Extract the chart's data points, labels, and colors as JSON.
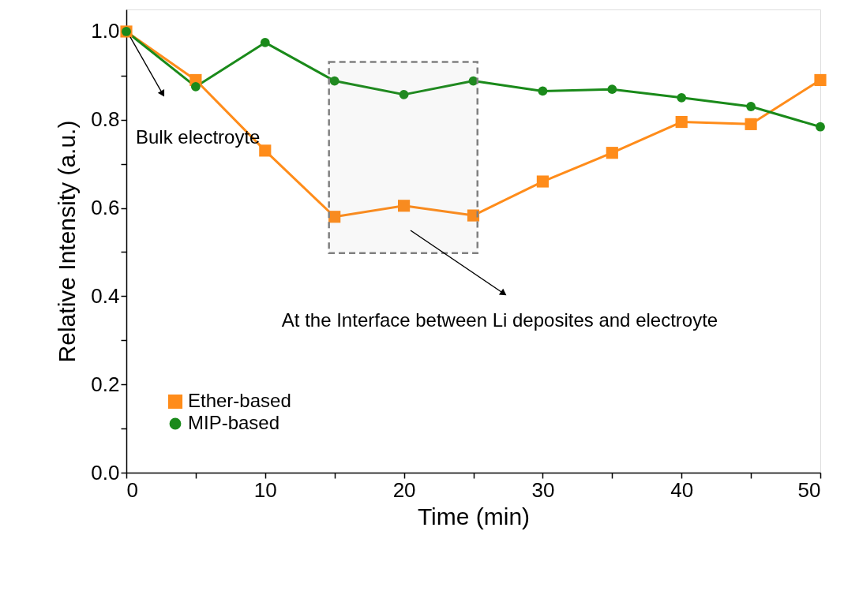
{
  "chart_data": {
    "type": "line",
    "xlabel": "Time (min)",
    "ylabel": "Relative Intensity (a.u.)",
    "x": [
      0,
      5,
      10,
      15,
      20,
      25,
      30,
      35,
      40,
      45,
      50
    ],
    "series": [
      {
        "name": "Ether-based",
        "color": "#ff8c1a",
        "marker": "square",
        "values": [
          1.0,
          0.89,
          0.73,
          0.58,
          0.605,
          0.583,
          0.66,
          0.725,
          0.795,
          0.79,
          0.89
        ]
      },
      {
        "name": "MIP-based",
        "color": "#1a8a1a",
        "marker": "circle",
        "values": [
          1.0,
          0.875,
          0.975,
          0.888,
          0.857,
          0.888,
          0.865,
          0.869,
          0.85,
          0.83,
          0.784
        ]
      }
    ],
    "xlim": [
      0,
      50
    ],
    "ylim": [
      0,
      1.05
    ],
    "xticks": [
      0,
      {
        "value": 5,
        "label": null
      },
      10,
      {
        "value": 15,
        "label": null
      },
      20,
      {
        "value": 25,
        "label": null
      },
      30,
      {
        "value": 35,
        "label": null
      },
      40,
      {
        "value": 45,
        "label": null
      },
      50
    ],
    "yticks": [
      {
        "value": 0,
        "label": "0.0"
      },
      {
        "value": 0.1,
        "label": null
      },
      0.2,
      {
        "value": 0.3,
        "label": null
      },
      0.4,
      {
        "value": 0.5,
        "label": null
      },
      0.6,
      {
        "value": 0.7,
        "label": null
      },
      0.8,
      {
        "value": 0.9,
        "label": null
      },
      {
        "value": 1.0,
        "label": "1.0"
      }
    ],
    "bands": [
      {
        "axis": "x",
        "from": 14.6,
        "to": 25.3,
        "color": "#808080"
      }
    ],
    "annotations": [
      "Bulk electroyte",
      "At the Interface between Li deposites and electroyte"
    ],
    "legend": "bottom left",
    "grid": false,
    "line_style": "solid"
  }
}
